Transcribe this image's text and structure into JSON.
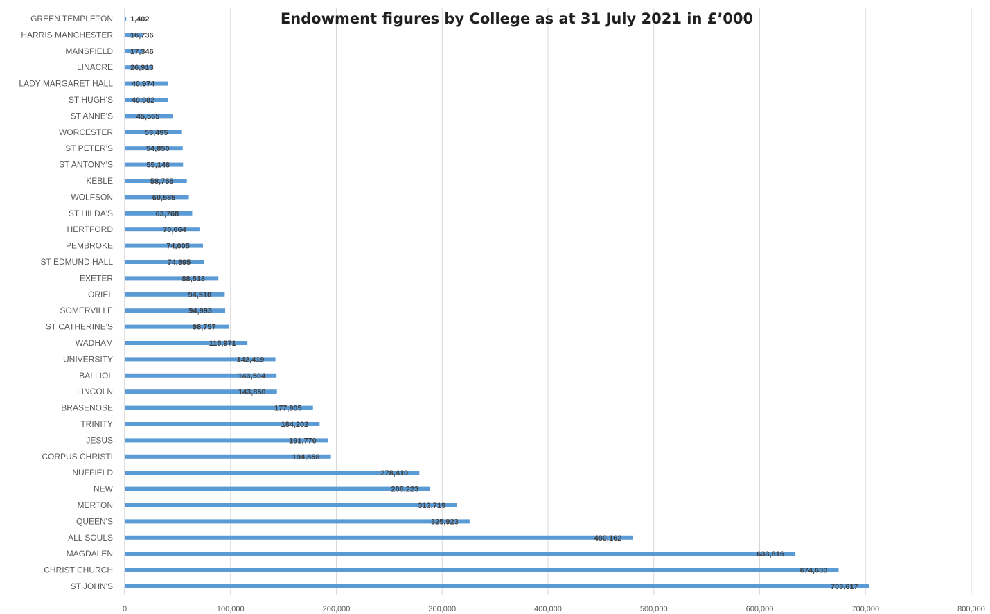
{
  "chart_data": {
    "type": "bar",
    "orientation": "horizontal",
    "title": "Endowment figures by College as at 31 July 2021 in £’000",
    "xlabel": "",
    "ylabel": "",
    "xlim": [
      0,
      800000
    ],
    "grid": true,
    "legend": "none",
    "bar_color": "#5b9bd5",
    "x_ticks": [
      0,
      100000,
      200000,
      300000,
      400000,
      500000,
      600000,
      700000,
      800000
    ],
    "x_tick_labels": [
      "0",
      "100,000",
      "200,000",
      "300,000",
      "400,000",
      "500,000",
      "600,000",
      "700,000",
      "800,000"
    ],
    "categories": [
      "GREEN TEMPLETON",
      "HARRIS MANCHESTER",
      "MANSFIELD",
      "LINACRE",
      "LADY MARGARET HALL",
      "ST HUGH'S",
      "ST ANNE'S",
      "WORCESTER",
      "ST PETER'S",
      "ST ANTONY'S",
      "KEBLE",
      "WOLFSON",
      "ST HILDA'S",
      "HERTFORD",
      "PEMBROKE",
      "ST EDMUND HALL",
      "EXETER",
      "ORIEL",
      "SOMERVILLE",
      "ST CATHERINE'S",
      "WADHAM",
      "UNIVERSITY",
      "BALLIOL",
      "LINCOLN",
      "BRASENOSE",
      "TRINITY",
      "JESUS",
      "CORPUS CHRISTI",
      "NUFFIELD",
      "NEW",
      "MERTON",
      "QUEEN'S",
      "ALL SOULS",
      "MAGDALEN",
      "CHRIST CHURCH",
      "ST JOHN'S"
    ],
    "values": [
      1402,
      16736,
      17346,
      26913,
      40974,
      40982,
      45565,
      53495,
      54850,
      55148,
      58755,
      60585,
      63768,
      70664,
      74005,
      74895,
      88513,
      94510,
      94993,
      98757,
      115971,
      142419,
      143504,
      143850,
      177905,
      184202,
      191770,
      194858,
      278419,
      288223,
      313719,
      325923,
      480162,
      633816,
      674630,
      703617
    ],
    "value_labels": [
      "1,402",
      "16,736",
      "17,346",
      "26,913",
      "40,974",
      "40,982",
      "45,565",
      "53,495",
      "54,850",
      "55,148",
      "58,755",
      "60,585",
      "63,768",
      "70,664",
      "74,005",
      "74,895",
      "88,513",
      "94,510",
      "94,993",
      "98,757",
      "115,971",
      "142,419",
      "143,504",
      "143,850",
      "177,905",
      "184,202",
      "191,770",
      "194,858",
      "278,419",
      "288,223",
      "313,719",
      "325,923",
      "480,162",
      "633,816",
      "674,630",
      "703,617"
    ]
  }
}
